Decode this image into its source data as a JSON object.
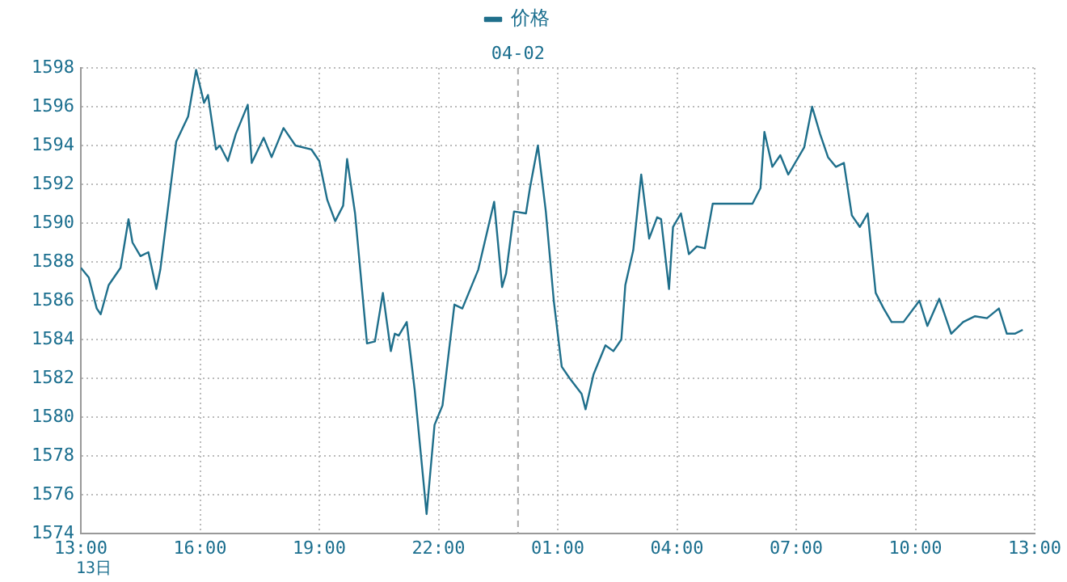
{
  "chart_data": {
    "type": "line",
    "legend": "top",
    "grid": true,
    "marker": "none",
    "line_style": "solid",
    "x": [
      "--04-01T13:00",
      "--04-01T13:12",
      "--04-01T13:24",
      "--04-01T13:30",
      "--04-01T13:42",
      "--04-01T14:00",
      "--04-01T14:12",
      "--04-01T14:18",
      "--04-01T14:30",
      "--04-01T14:42",
      "--04-01T14:54",
      "--04-01T15:00",
      "--04-01T15:24",
      "--04-01T15:42",
      "--04-01T15:54",
      "--04-01T16:06",
      "--04-01T16:12",
      "--04-01T16:24",
      "--04-01T16:30",
      "--04-01T16:42",
      "--04-01T16:54",
      "--04-01T17:12",
      "--04-01T17:18",
      "--04-01T17:36",
      "--04-01T17:48",
      "--04-01T18:06",
      "--04-01T18:24",
      "--04-01T18:48",
      "--04-01T19:00",
      "--04-01T19:12",
      "--04-01T19:24",
      "--04-01T19:36",
      "--04-01T19:42",
      "--04-01T19:54",
      "--04-01T20:12",
      "--04-01T20:24",
      "--04-01T20:36",
      "--04-01T20:48",
      "--04-01T20:54",
      "--04-01T21:00",
      "--04-01T21:12",
      "--04-01T21:24",
      "--04-01T21:42",
      "--04-01T21:54",
      "--04-01T22:06",
      "--04-01T22:24",
      "--04-01T22:36",
      "--04-01T22:48",
      "--04-01T23:00",
      "--04-01T23:24",
      "--04-01T23:36",
      "--04-01T23:42",
      "--04-01T23:54",
      "--04-02T00:12",
      "--04-02T00:18",
      "--04-02T00:30",
      "--04-02T00:42",
      "--04-02T00:54",
      "--04-02T01:06",
      "--04-02T01:18",
      "--04-02T01:36",
      "--04-02T01:42",
      "--04-02T01:54",
      "--04-02T02:12",
      "--04-02T02:24",
      "--04-02T02:36",
      "--04-02T02:42",
      "--04-02T02:54",
      "--04-02T03:06",
      "--04-02T03:18",
      "--04-02T03:30",
      "--04-02T03:36",
      "--04-02T03:48",
      "--04-02T03:54",
      "--04-02T04:06",
      "--04-02T04:18",
      "--04-02T04:30",
      "--04-02T04:42",
      "--04-02T04:54",
      "--04-02T05:54",
      "--04-02T06:06",
      "--04-02T06:12",
      "--04-02T06:24",
      "--04-02T06:36",
      "--04-02T06:48",
      "--04-02T07:12",
      "--04-02T07:24",
      "--04-02T07:36",
      "--04-02T07:48",
      "--04-02T08:00",
      "--04-02T08:12",
      "--04-02T08:24",
      "--04-02T08:36",
      "--04-02T08:48",
      "--04-02T09:00",
      "--04-02T09:12",
      "--04-02T09:24",
      "--04-02T09:42",
      "--04-02T10:06",
      "--04-02T10:18",
      "--04-02T10:36",
      "--04-02T10:54",
      "--04-02T11:12",
      "--04-02T11:30",
      "--04-02T11:48",
      "--04-02T12:06",
      "--04-02T12:18",
      "--04-02T12:30",
      "--04-02T12:42"
    ],
    "series": [
      {
        "name": "价格",
        "color": "#1f6f8b",
        "values": [
          1587.7,
          1587.2,
          1585.6,
          1585.3,
          1586.8,
          1587.7,
          1590.2,
          1589,
          1588.3,
          1588.5,
          1586.6,
          1587.6,
          1594.2,
          1595.5,
          1597.9,
          1596.2,
          1596.6,
          1593.8,
          1594,
          1593.2,
          1594.6,
          1596.1,
          1593.1,
          1594.4,
          1593.4,
          1594.9,
          1594,
          1593.8,
          1593.2,
          1591.2,
          1590.1,
          1590.9,
          1593.3,
          1590.5,
          1583.8,
          1583.9,
          1586.4,
          1583.4,
          1584.3,
          1584.2,
          1584.9,
          1581.4,
          1575,
          1579.6,
          1580.6,
          1585.8,
          1585.6,
          1586.6,
          1587.6,
          1591.1,
          1586.7,
          1587.4,
          1590.6,
          1590.5,
          1591.8,
          1594,
          1590.6,
          1586,
          1582.6,
          1582,
          1581.2,
          1580.4,
          1582.2,
          1583.7,
          1583.4,
          1584,
          1586.8,
          1588.6,
          1592.5,
          1589.2,
          1590.3,
          1590.2,
          1586.6,
          1589.8,
          1590.5,
          1588.4,
          1588.8,
          1588.7,
          1591,
          1591,
          1591.8,
          1594.7,
          1592.9,
          1593.5,
          1592.5,
          1593.9,
          1596,
          1594.6,
          1593.4,
          1592.9,
          1593.1,
          1590.4,
          1589.8,
          1590.5,
          1586.4,
          1585.6,
          1584.9,
          1584.9,
          1586,
          1584.7,
          1586.1,
          1584.3,
          1584.9,
          1585.2,
          1585.1,
          1585.6,
          1584.3,
          1584.3,
          1584.5
        ]
      }
    ],
    "xlim": [
      "--04-01T13:00",
      "--04-02T13:00"
    ],
    "xticks": [
      {
        "value": "--04-01T13:00",
        "label": "13:00"
      },
      {
        "value": "--04-01T16:00",
        "label": "16:00"
      },
      {
        "value": "--04-01T19:00",
        "label": "19:00"
      },
      {
        "value": "--04-01T22:00",
        "label": "22:00"
      },
      {
        "value": "--04-02T01:00",
        "label": "01:00"
      },
      {
        "value": "--04-02T04:00",
        "label": "04:00"
      },
      {
        "value": "--04-02T07:00",
        "label": "07:00"
      },
      {
        "value": "--04-02T10:00",
        "label": "10:00"
      },
      {
        "value": "--04-02T13:00",
        "label": "13:00"
      }
    ],
    "ylim": [
      1574,
      1598
    ],
    "yticks": [
      1574,
      1576,
      1578,
      1580,
      1582,
      1584,
      1586,
      1588,
      1590,
      1592,
      1594,
      1596,
      1598
    ],
    "ref_lines": [
      {
        "axis": "x",
        "value": "--04-02T00:00",
        "label": "04-02",
        "color": "#aaaaaa",
        "line_style": "dashed"
      }
    ],
    "annotations": [
      "13日"
    ]
  }
}
